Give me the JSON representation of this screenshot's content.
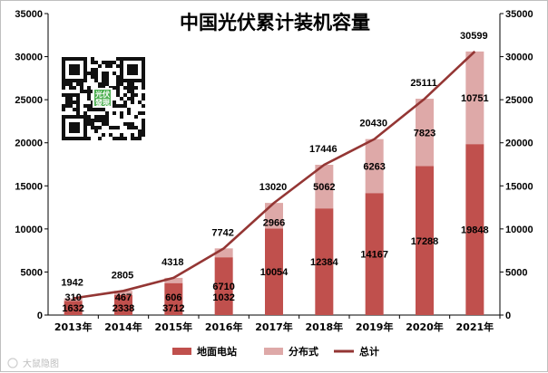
{
  "chart_data": {
    "type": "bar",
    "stacked": true,
    "title": "中国光伏累计装机容量",
    "categories": [
      "2013年",
      "2014年",
      "2015年",
      "2016年",
      "2017年",
      "2018年",
      "2019年",
      "2020年",
      "2021年"
    ],
    "series": [
      {
        "name": "地面电站",
        "kind": "bar",
        "color": "#c0504d",
        "values": [
          1632,
          2338,
          3712,
          6710,
          10054,
          12384,
          14167,
          17288,
          19848
        ]
      },
      {
        "name": "分布式",
        "kind": "bar",
        "color": "#dea9a8",
        "values": [
          310,
          467,
          606,
          1032,
          2966,
          5062,
          6263,
          7823,
          10751
        ]
      },
      {
        "name": "总计",
        "kind": "line",
        "color": "#943634",
        "values": [
          1942,
          2805,
          4318,
          7742,
          13020,
          17446,
          20430,
          25111,
          30599
        ]
      }
    ],
    "ylim": [
      0,
      35000
    ],
    "yticks": [
      "0",
      "5000",
      "10000",
      "15000",
      "20000",
      "25000",
      "30000",
      "35000"
    ],
    "y2ticks": [
      "0",
      "5000",
      "10000",
      "15000",
      "20000",
      "25000",
      "30000",
      "35000"
    ],
    "legend_position": "bottom"
  },
  "qr": {
    "badge_line1": "光伏",
    "badge_line2": "發現"
  },
  "watermark": "大鼠隐图"
}
